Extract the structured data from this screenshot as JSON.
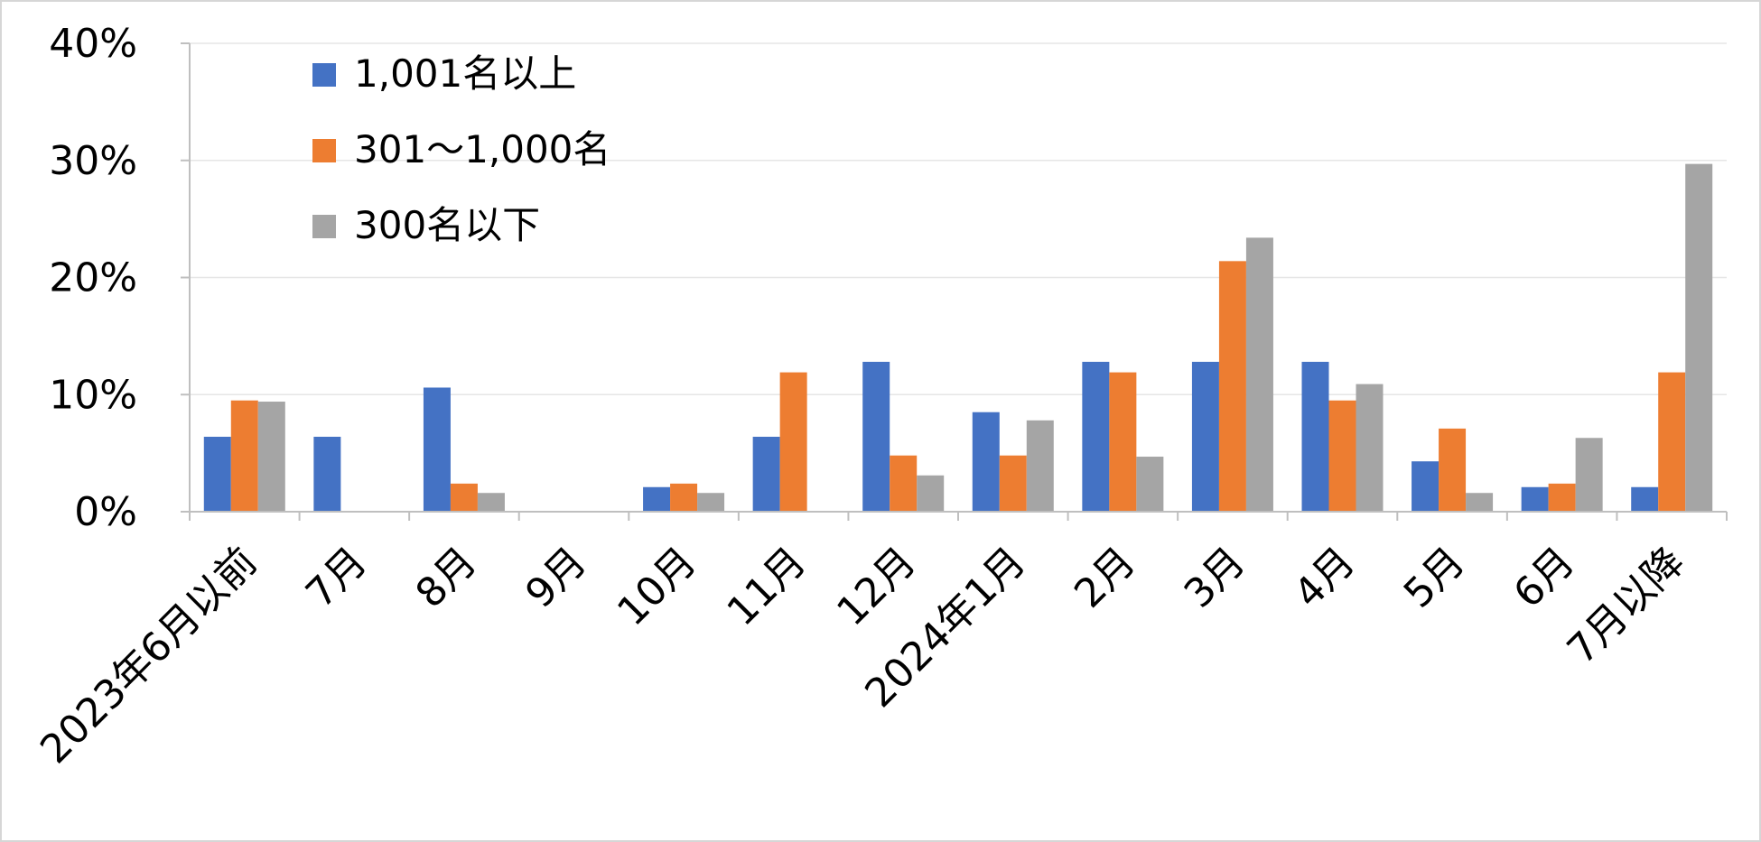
{
  "chart_data": {
    "type": "bar",
    "categories": [
      "2023年6月以前",
      "7月",
      "8月",
      "9月",
      "10月",
      "11月",
      "12月",
      "2024年1月",
      "2月",
      "3月",
      "4月",
      "5月",
      "6月",
      "7月以降"
    ],
    "series": [
      {
        "name": "1,001名以上",
        "color": "#4472c4",
        "values": [
          6.4,
          6.4,
          10.6,
          0,
          2.1,
          6.4,
          12.8,
          8.5,
          12.8,
          12.8,
          12.8,
          4.3,
          2.1,
          2.1
        ]
      },
      {
        "name": "301～1,000名",
        "color": "#ed7d31",
        "values": [
          9.5,
          0,
          2.4,
          0,
          2.4,
          11.9,
          4.8,
          4.8,
          11.9,
          21.4,
          9.5,
          7.1,
          2.4,
          11.9
        ]
      },
      {
        "name": "300名以下",
        "color": "#a5a5a5",
        "values": [
          9.4,
          0,
          1.6,
          0,
          1.6,
          0,
          3.1,
          7.8,
          4.7,
          23.4,
          10.9,
          1.6,
          6.3,
          29.7
        ]
      }
    ],
    "y_ticks": [
      "0%",
      "10%",
      "20%",
      "30%",
      "40%"
    ],
    "ylim": [
      0,
      40
    ],
    "grid": true,
    "legend_position": "top-left",
    "title": "",
    "xlabel": "",
    "ylabel": ""
  }
}
